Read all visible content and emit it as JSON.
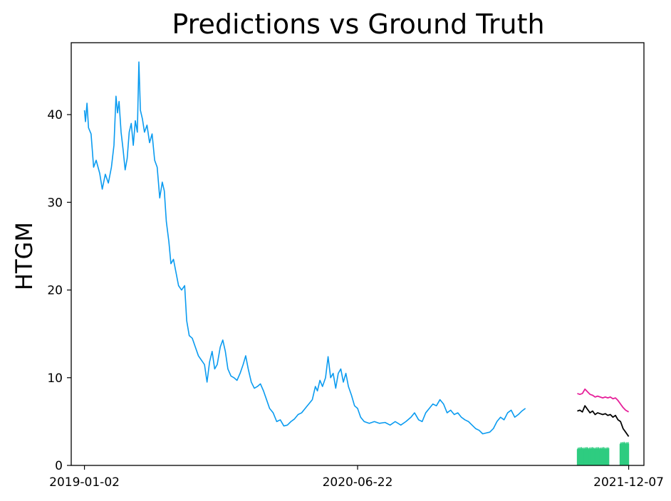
{
  "chart_data": {
    "type": "line",
    "title": "Predictions vs Ground Truth",
    "xlabel": "",
    "ylabel": "HTGM",
    "x_ticks": [
      "2019-01-02",
      "2020-06-22",
      "2021-12-07"
    ],
    "y_ticks": [
      0,
      10,
      20,
      30,
      40
    ],
    "xlim": [
      "2018-12-07",
      "2022-01-06"
    ],
    "ylim": [
      0,
      48.2
    ],
    "grid": false,
    "series": [
      {
        "color": "#0a9bf0",
        "points": [
          [
            "2019-01-02",
            40.5
          ],
          [
            "2019-01-04",
            39.2
          ],
          [
            "2019-01-07",
            41.3
          ],
          [
            "2019-01-10",
            38.5
          ],
          [
            "2019-01-15",
            37.8
          ],
          [
            "2019-01-20",
            34.0
          ],
          [
            "2019-01-25",
            34.8
          ],
          [
            "2019-02-01",
            33.3
          ],
          [
            "2019-02-06",
            31.5
          ],
          [
            "2019-02-12",
            33.2
          ],
          [
            "2019-02-18",
            32.2
          ],
          [
            "2019-02-24",
            34.0
          ],
          [
            "2019-03-01",
            36.5
          ],
          [
            "2019-03-05",
            42.1
          ],
          [
            "2019-03-08",
            40.2
          ],
          [
            "2019-03-11",
            41.5
          ],
          [
            "2019-03-15",
            38.0
          ],
          [
            "2019-03-19",
            36.0
          ],
          [
            "2019-03-23",
            33.7
          ],
          [
            "2019-03-27",
            35.0
          ],
          [
            "2019-03-31",
            38.0
          ],
          [
            "2019-04-04",
            39.0
          ],
          [
            "2019-04-08",
            36.5
          ],
          [
            "2019-04-12",
            39.3
          ],
          [
            "2019-04-16",
            38.0
          ],
          [
            "2019-04-19",
            46.0
          ],
          [
            "2019-04-22",
            40.5
          ],
          [
            "2019-04-26",
            39.5
          ],
          [
            "2019-04-30",
            38.0
          ],
          [
            "2019-05-05",
            38.8
          ],
          [
            "2019-05-10",
            36.8
          ],
          [
            "2019-05-15",
            37.8
          ],
          [
            "2019-05-20",
            34.8
          ],
          [
            "2019-05-25",
            34.0
          ],
          [
            "2019-05-30",
            30.5
          ],
          [
            "2019-06-04",
            32.3
          ],
          [
            "2019-06-08",
            31.3
          ],
          [
            "2019-06-12",
            27.8
          ],
          [
            "2019-06-17",
            25.5
          ],
          [
            "2019-06-21",
            23.0
          ],
          [
            "2019-06-26",
            23.5
          ],
          [
            "2019-07-01",
            22.0
          ],
          [
            "2019-07-06",
            20.5
          ],
          [
            "2019-07-12",
            20.0
          ],
          [
            "2019-07-18",
            20.5
          ],
          [
            "2019-07-22",
            16.5
          ],
          [
            "2019-07-27",
            14.8
          ],
          [
            "2019-08-02",
            14.5
          ],
          [
            "2019-08-08",
            13.5
          ],
          [
            "2019-08-14",
            12.5
          ],
          [
            "2019-08-20",
            12.0
          ],
          [
            "2019-08-26",
            11.5
          ],
          [
            "2019-08-31",
            9.5
          ],
          [
            "2019-09-05",
            11.8
          ],
          [
            "2019-09-10",
            13.0
          ],
          [
            "2019-09-15",
            11.0
          ],
          [
            "2019-09-20",
            11.5
          ],
          [
            "2019-09-26",
            13.5
          ],
          [
            "2019-10-01",
            14.3
          ],
          [
            "2019-10-06",
            13.0
          ],
          [
            "2019-10-11",
            11.0
          ],
          [
            "2019-10-17",
            10.2
          ],
          [
            "2019-10-23",
            10.0
          ],
          [
            "2019-10-29",
            9.7
          ],
          [
            "2019-11-04",
            10.5
          ],
          [
            "2019-11-10",
            11.5
          ],
          [
            "2019-11-15",
            12.5
          ],
          [
            "2019-11-20",
            11.0
          ],
          [
            "2019-11-26",
            9.5
          ],
          [
            "2019-12-02",
            8.8
          ],
          [
            "2019-12-08",
            9.0
          ],
          [
            "2019-12-14",
            9.3
          ],
          [
            "2019-12-20",
            8.5
          ],
          [
            "2019-12-26",
            7.5
          ],
          [
            "2020-01-01",
            6.5
          ],
          [
            "2020-01-08",
            6.0
          ],
          [
            "2020-01-15",
            5.0
          ],
          [
            "2020-01-22",
            5.2
          ],
          [
            "2020-01-29",
            4.5
          ],
          [
            "2020-02-05",
            4.6
          ],
          [
            "2020-02-12",
            5.0
          ],
          [
            "2020-02-19",
            5.3
          ],
          [
            "2020-02-26",
            5.8
          ],
          [
            "2020-03-04",
            6.0
          ],
          [
            "2020-03-11",
            6.5
          ],
          [
            "2020-03-18",
            7.0
          ],
          [
            "2020-03-25",
            7.5
          ],
          [
            "2020-03-31",
            9.0
          ],
          [
            "2020-04-04",
            8.5
          ],
          [
            "2020-04-09",
            9.7
          ],
          [
            "2020-04-14",
            9.0
          ],
          [
            "2020-04-20",
            10.0
          ],
          [
            "2020-04-25",
            12.4
          ],
          [
            "2020-04-30",
            10.0
          ],
          [
            "2020-05-05",
            10.5
          ],
          [
            "2020-05-10",
            8.8
          ],
          [
            "2020-05-15",
            10.5
          ],
          [
            "2020-05-20",
            11.0
          ],
          [
            "2020-05-25",
            9.5
          ],
          [
            "2020-05-30",
            10.5
          ],
          [
            "2020-06-04",
            9.0
          ],
          [
            "2020-06-10",
            8.0
          ],
          [
            "2020-06-16",
            6.8
          ],
          [
            "2020-06-22",
            6.5
          ],
          [
            "2020-06-28",
            5.5
          ],
          [
            "2020-07-05",
            5.0
          ],
          [
            "2020-07-15",
            4.8
          ],
          [
            "2020-07-25",
            5.0
          ],
          [
            "2020-08-04",
            4.8
          ],
          [
            "2020-08-15",
            4.9
          ],
          [
            "2020-08-25",
            4.6
          ],
          [
            "2020-09-04",
            5.0
          ],
          [
            "2020-09-15",
            4.6
          ],
          [
            "2020-09-25",
            5.0
          ],
          [
            "2020-10-05",
            5.5
          ],
          [
            "2020-10-12",
            6.0
          ],
          [
            "2020-10-20",
            5.2
          ],
          [
            "2020-10-27",
            5.0
          ],
          [
            "2020-11-03",
            6.0
          ],
          [
            "2020-11-10",
            6.5
          ],
          [
            "2020-11-17",
            7.0
          ],
          [
            "2020-11-24",
            6.8
          ],
          [
            "2020-12-01",
            7.5
          ],
          [
            "2020-12-08",
            7.0
          ],
          [
            "2020-12-15",
            6.0
          ],
          [
            "2020-12-22",
            6.3
          ],
          [
            "2020-12-29",
            5.8
          ],
          [
            "2021-01-05",
            6.0
          ],
          [
            "2021-01-12",
            5.5
          ],
          [
            "2021-01-19",
            5.2
          ],
          [
            "2021-01-26",
            5.0
          ],
          [
            "2021-02-02",
            4.6
          ],
          [
            "2021-02-09",
            4.2
          ],
          [
            "2021-02-16",
            4.0
          ],
          [
            "2021-02-23",
            3.6
          ],
          [
            "2021-03-02",
            3.7
          ],
          [
            "2021-03-09",
            3.8
          ],
          [
            "2021-03-16",
            4.2
          ],
          [
            "2021-03-23",
            5.0
          ],
          [
            "2021-03-30",
            5.5
          ],
          [
            "2021-04-06",
            5.2
          ],
          [
            "2021-04-13",
            6.0
          ],
          [
            "2021-04-20",
            6.3
          ],
          [
            "2021-04-27",
            5.5
          ],
          [
            "2021-05-04",
            5.8
          ],
          [
            "2021-05-11",
            6.2
          ],
          [
            "2021-05-18",
            6.5
          ]
        ]
      },
      {
        "color": "#000000",
        "points": [
          [
            "2021-08-28",
            6.2
          ],
          [
            "2021-09-02",
            6.3
          ],
          [
            "2021-09-07",
            6.1
          ],
          [
            "2021-09-12",
            6.8
          ],
          [
            "2021-09-17",
            6.4
          ],
          [
            "2021-09-22",
            6.0
          ],
          [
            "2021-09-27",
            6.2
          ],
          [
            "2021-10-02",
            5.8
          ],
          [
            "2021-10-07",
            6.0
          ],
          [
            "2021-10-12",
            5.9
          ],
          [
            "2021-10-17",
            5.8
          ],
          [
            "2021-10-22",
            5.9
          ],
          [
            "2021-10-27",
            5.7
          ],
          [
            "2021-11-01",
            5.8
          ],
          [
            "2021-11-06",
            5.5
          ],
          [
            "2021-11-11",
            5.7
          ],
          [
            "2021-11-16",
            5.2
          ],
          [
            "2021-11-21",
            5.0
          ],
          [
            "2021-11-26",
            4.2
          ],
          [
            "2021-12-01",
            3.8
          ],
          [
            "2021-12-07",
            3.3
          ]
        ]
      },
      {
        "color": "#e6209a",
        "points": [
          [
            "2021-08-28",
            8.2
          ],
          [
            "2021-09-02",
            8.1
          ],
          [
            "2021-09-07",
            8.2
          ],
          [
            "2021-09-12",
            8.7
          ],
          [
            "2021-09-17",
            8.4
          ],
          [
            "2021-09-22",
            8.1
          ],
          [
            "2021-09-27",
            8.0
          ],
          [
            "2021-10-02",
            7.8
          ],
          [
            "2021-10-07",
            7.9
          ],
          [
            "2021-10-12",
            7.8
          ],
          [
            "2021-10-17",
            7.7
          ],
          [
            "2021-10-22",
            7.8
          ],
          [
            "2021-10-27",
            7.7
          ],
          [
            "2021-11-01",
            7.8
          ],
          [
            "2021-11-06",
            7.6
          ],
          [
            "2021-11-11",
            7.7
          ],
          [
            "2021-11-16",
            7.4
          ],
          [
            "2021-11-21",
            7.0
          ],
          [
            "2021-11-26",
            6.6
          ],
          [
            "2021-12-01",
            6.3
          ],
          [
            "2021-12-07",
            6.1
          ]
        ]
      }
    ],
    "bars": {
      "color": "#2ecc80",
      "segments": [
        {
          "start": "2021-08-28",
          "end": "2021-10-29",
          "value": 2.0
        },
        {
          "start": "2021-11-20",
          "end": "2021-12-07",
          "value": 2.6
        }
      ]
    }
  }
}
